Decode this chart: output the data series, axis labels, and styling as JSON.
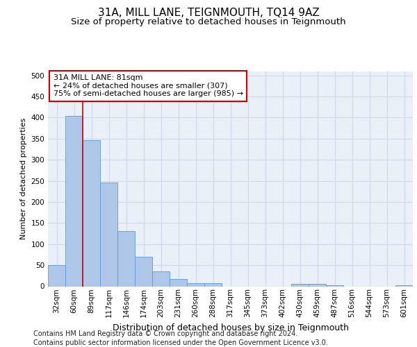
{
  "title": "31A, MILL LANE, TEIGNMOUTH, TQ14 9AZ",
  "subtitle": "Size of property relative to detached houses in Teignmouth",
  "xlabel": "Distribution of detached houses by size in Teignmouth",
  "ylabel": "Number of detached properties",
  "categories": [
    "32sqm",
    "60sqm",
    "89sqm",
    "117sqm",
    "146sqm",
    "174sqm",
    "203sqm",
    "231sqm",
    "260sqm",
    "288sqm",
    "317sqm",
    "345sqm",
    "373sqm",
    "402sqm",
    "430sqm",
    "459sqm",
    "487sqm",
    "516sqm",
    "544sqm",
    "573sqm",
    "601sqm"
  ],
  "values": [
    50,
    404,
    347,
    246,
    130,
    70,
    35,
    18,
    8,
    7,
    0,
    0,
    0,
    0,
    5,
    5,
    2,
    0,
    0,
    0,
    3
  ],
  "bar_color": "#aec6e8",
  "bar_edge_color": "#5b9bd5",
  "grid_color": "#d0d8e8",
  "background_color": "#eaf0f8",
  "property_line_x": 1.5,
  "property_line_color": "#cc0000",
  "annotation_text": "31A MILL LANE: 81sqm\n← 24% of detached houses are smaller (307)\n75% of semi-detached houses are larger (985) →",
  "annotation_box_color": "#ffffff",
  "annotation_box_edge": "#cc0000",
  "ylim": [
    0,
    510
  ],
  "yticks": [
    0,
    50,
    100,
    150,
    200,
    250,
    300,
    350,
    400,
    450,
    500
  ],
  "footer_line1": "Contains HM Land Registry data © Crown copyright and database right 2024.",
  "footer_line2": "Contains public sector information licensed under the Open Government Licence v3.0.",
  "title_fontsize": 11,
  "subtitle_fontsize": 9.5,
  "xlabel_fontsize": 9,
  "ylabel_fontsize": 8,
  "tick_fontsize": 7.5,
  "annotation_fontsize": 8,
  "footer_fontsize": 7
}
